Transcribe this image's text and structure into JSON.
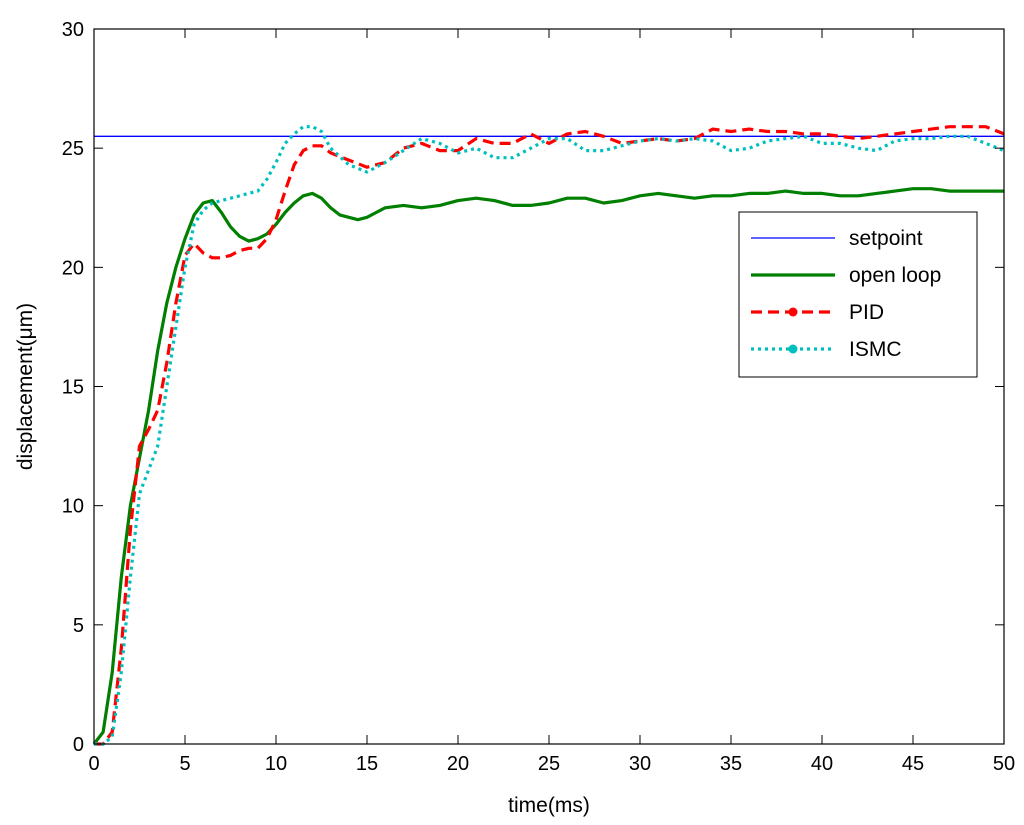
{
  "chart_data": {
    "type": "line",
    "xlabel": "time(ms)",
    "ylabel": "displacement(μm)",
    "xlim": [
      0,
      50
    ],
    "ylim": [
      0,
      30
    ],
    "xticks": [
      "0",
      "5",
      "10",
      "15",
      "20",
      "25",
      "30",
      "35",
      "40",
      "45",
      "50"
    ],
    "yticks": [
      "0",
      "5",
      "10",
      "15",
      "20",
      "25",
      "30"
    ],
    "grid": false,
    "legend_position": "right",
    "series": [
      {
        "name": "setpoint",
        "color": "#0000ff",
        "style": "solid-thin",
        "x": [
          0,
          50
        ],
        "y": [
          25.5,
          25.5
        ]
      },
      {
        "name": "open loop",
        "color": "#007f00",
        "style": "solid-thick",
        "x": [
          0,
          0.5,
          1,
          1.5,
          2,
          2.5,
          3,
          3.5,
          4,
          4.5,
          5,
          5.5,
          6,
          6.5,
          7,
          7.5,
          8,
          8.5,
          9,
          9.5,
          10,
          10.5,
          11,
          11.5,
          12,
          12.5,
          13,
          13.5,
          14,
          14.5,
          15,
          15.5,
          16,
          17,
          18,
          19,
          20,
          21,
          22,
          23,
          24,
          25,
          26,
          27,
          28,
          29,
          30,
          31,
          32,
          33,
          34,
          35,
          36,
          37,
          38,
          39,
          40,
          41,
          42,
          43,
          44,
          45,
          46,
          47,
          48,
          49,
          50
        ],
        "y": [
          0,
          0.5,
          3,
          7,
          10,
          12,
          14,
          16.5,
          18.5,
          20,
          21.2,
          22.2,
          22.7,
          22.8,
          22.3,
          21.7,
          21.3,
          21.1,
          21.2,
          21.4,
          21.8,
          22.3,
          22.7,
          23.0,
          23.1,
          22.9,
          22.5,
          22.2,
          22.1,
          22.0,
          22.1,
          22.3,
          22.5,
          22.6,
          22.5,
          22.6,
          22.8,
          22.9,
          22.8,
          22.6,
          22.6,
          22.7,
          22.9,
          22.9,
          22.7,
          22.8,
          23.0,
          23.1,
          23.0,
          22.9,
          23.0,
          23.0,
          23.1,
          23.1,
          23.2,
          23.1,
          23.1,
          23.0,
          23.0,
          23.1,
          23.2,
          23.3,
          23.3,
          23.2,
          23.2,
          23.2,
          23.2
        ]
      },
      {
        "name": "PID",
        "color": "#ff0000",
        "style": "dashed-marker",
        "x": [
          0,
          0.5,
          1,
          1.5,
          2,
          2.5,
          3,
          3.5,
          4,
          4.5,
          5,
          5.5,
          6,
          6.5,
          7,
          7.5,
          8,
          8.5,
          9,
          9.5,
          10,
          10.5,
          11,
          11.5,
          12,
          12.5,
          13,
          14,
          15,
          16,
          17,
          18,
          19,
          20,
          21,
          22,
          23,
          24,
          25,
          26,
          27,
          28,
          29,
          30,
          31,
          32,
          33,
          34,
          35,
          36,
          37,
          38,
          39,
          40,
          41,
          42,
          43,
          44,
          45,
          46,
          47,
          48,
          49,
          50
        ],
        "y": [
          0,
          0,
          0.5,
          4,
          9,
          12.5,
          13.2,
          14,
          16,
          18.5,
          20.5,
          21.0,
          20.6,
          20.4,
          20.4,
          20.5,
          20.7,
          20.8,
          20.8,
          21.2,
          22.0,
          23.2,
          24.3,
          24.9,
          25.1,
          25.1,
          24.8,
          24.5,
          24.2,
          24.4,
          25.0,
          25.2,
          24.9,
          24.9,
          25.4,
          25.2,
          25.2,
          25.6,
          25.2,
          25.6,
          25.7,
          25.5,
          25.2,
          25.3,
          25.4,
          25.3,
          25.4,
          25.8,
          25.7,
          25.8,
          25.7,
          25.7,
          25.6,
          25.6,
          25.5,
          25.4,
          25.5,
          25.6,
          25.7,
          25.8,
          25.9,
          25.9,
          25.9,
          25.6
        ]
      },
      {
        "name": "ISMC",
        "color": "#00bfbf",
        "style": "dotted-marker",
        "x": [
          0,
          0.5,
          1,
          1.5,
          2,
          2.5,
          3,
          3.5,
          4,
          4.5,
          5,
          5.5,
          6,
          6.5,
          7,
          7.5,
          8,
          8.5,
          9,
          9.5,
          10,
          10.5,
          11,
          11.5,
          12,
          12.5,
          13,
          14,
          15,
          16,
          17,
          18,
          19,
          20,
          21,
          22,
          23,
          24,
          25,
          26,
          27,
          28,
          29,
          30,
          31,
          32,
          33,
          34,
          35,
          36,
          37,
          38,
          39,
          40,
          41,
          42,
          43,
          44,
          45,
          46,
          47,
          48,
          49,
          50
        ],
        "y": [
          0,
          0,
          0.3,
          3,
          7,
          10.5,
          11.5,
          12.5,
          15,
          17.5,
          20,
          21.8,
          22.4,
          22.7,
          22.8,
          22.9,
          23.0,
          23.1,
          23.2,
          23.7,
          24.4,
          25.2,
          25.6,
          25.9,
          25.9,
          25.7,
          25.0,
          24.3,
          24.0,
          24.4,
          24.9,
          25.4,
          25.2,
          24.8,
          25.0,
          24.6,
          24.6,
          25.0,
          25.4,
          25.4,
          24.9,
          24.9,
          25.1,
          25.3,
          25.4,
          25.3,
          25.4,
          25.3,
          24.9,
          25.0,
          25.3,
          25.4,
          25.5,
          25.2,
          25.2,
          25.0,
          24.9,
          25.3,
          25.4,
          25.4,
          25.5,
          25.5,
          25.2,
          24.9
        ]
      }
    ]
  }
}
